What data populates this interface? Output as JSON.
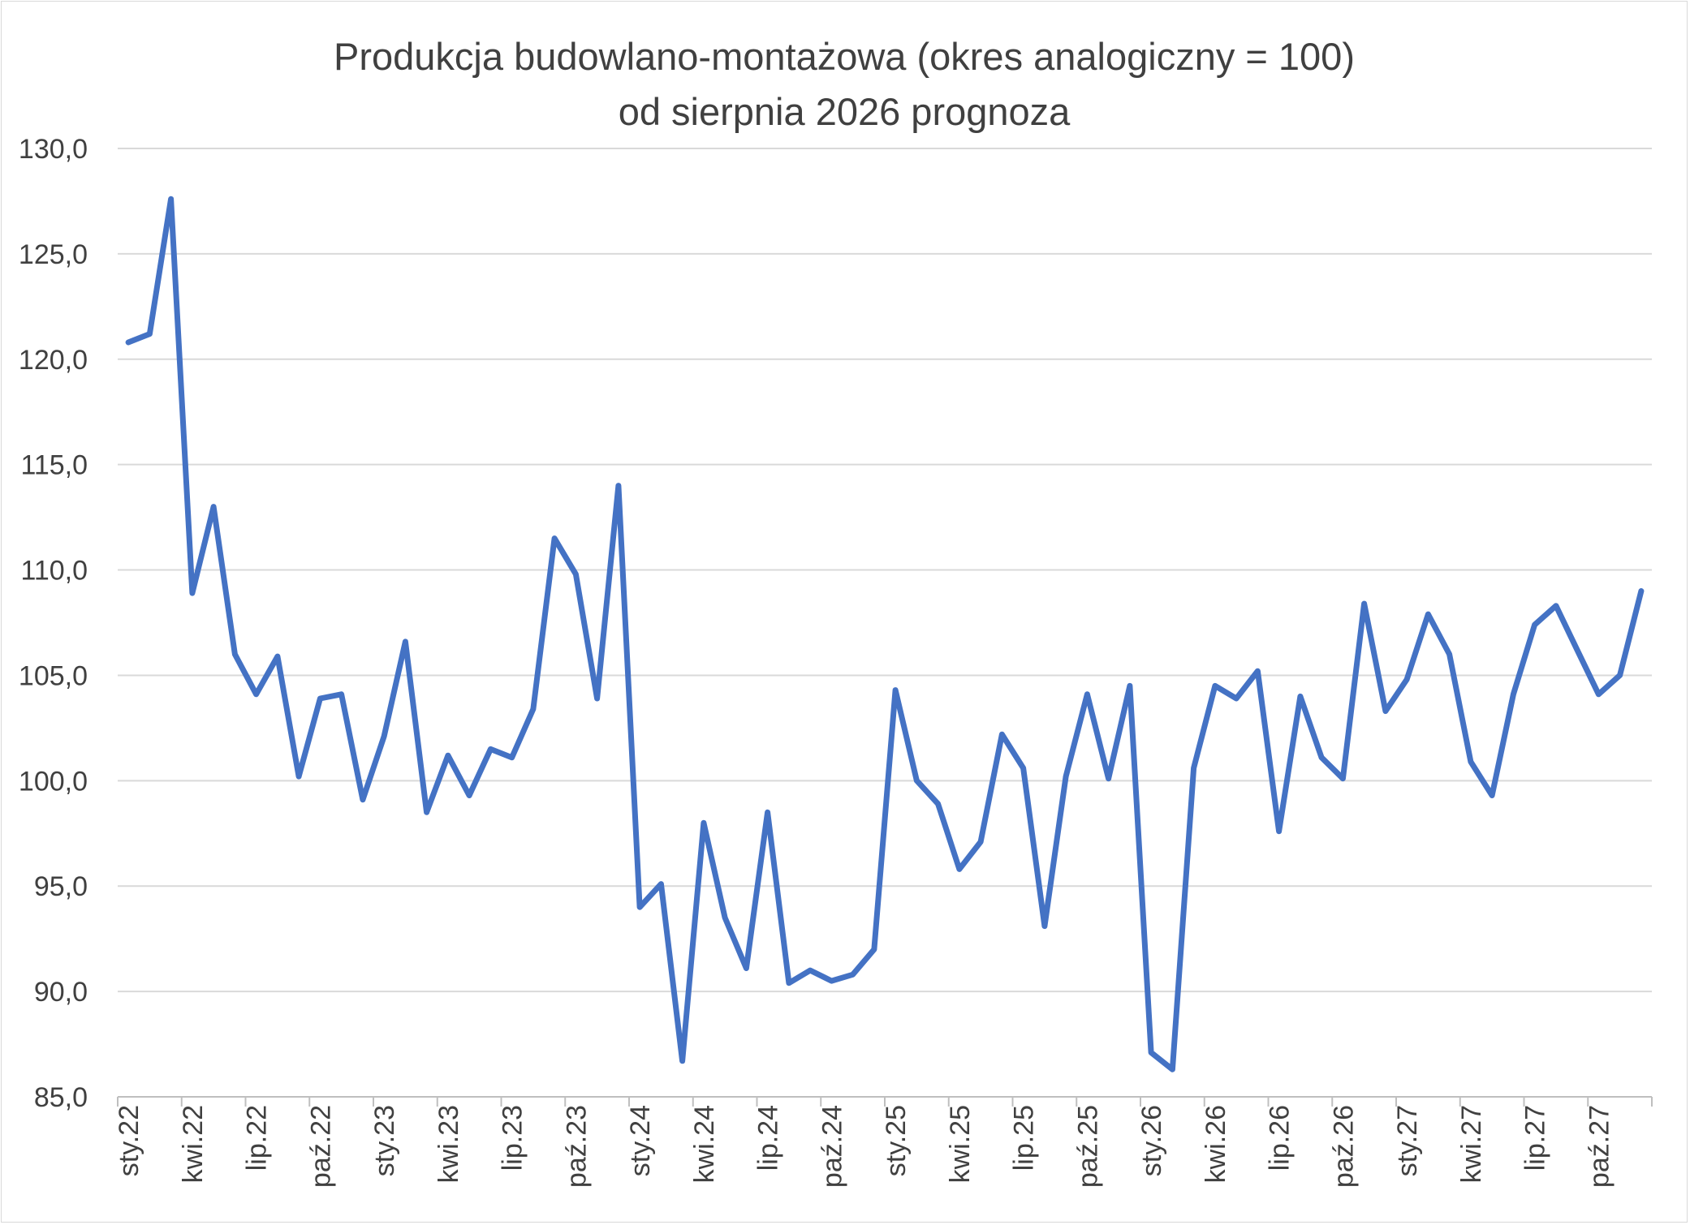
{
  "chart_data": {
    "type": "line",
    "title": "Produkcja budowlano-montażowa (okres analogiczny = 100)",
    "subtitle": "od  sierpnia 2026 prognoza",
    "ylim": [
      85,
      130
    ],
    "y_ticks": [
      "130,0",
      "125,0",
      "120,0",
      "115,0",
      "110,0",
      "105,0",
      "100,0",
      "95,0",
      "90,0",
      "85,0"
    ],
    "y_tick_values": [
      130,
      125,
      120,
      115,
      110,
      105,
      100,
      95,
      90,
      85
    ],
    "x_tick_labels": [
      "sty.22",
      "kwi.22",
      "lip.22",
      "paź.22",
      "sty.23",
      "kwi.23",
      "lip.23",
      "paź.23",
      "sty.24",
      "kwi.24",
      "lip.24",
      "paź.24",
      "sty.25",
      "kwi.25",
      "lip.25",
      "paź.25",
      "sty.26",
      "kwi.26",
      "lip.26",
      "paź.26",
      "sty.27",
      "kwi.27",
      "lip.27",
      "paź.27"
    ],
    "x_tick_interval_months": 3,
    "grid": true,
    "legend": "none",
    "series": [
      {
        "color": "#4472c4",
        "values": [
          120.8,
          121.2,
          127.6,
          108.9,
          113.0,
          106.0,
          104.1,
          105.9,
          100.2,
          103.9,
          104.1,
          99.1,
          102.1,
          106.6,
          98.5,
          101.2,
          99.3,
          101.5,
          101.1,
          103.4,
          111.5,
          109.8,
          103.9,
          114.0,
          94.0,
          95.1,
          86.7,
          98.0,
          93.5,
          91.1,
          98.5,
          90.4,
          91.0,
          90.5,
          90.8,
          92.0,
          104.3,
          100.0,
          98.9,
          95.8,
          97.1,
          102.2,
          100.6,
          93.1,
          100.2,
          104.1,
          100.1,
          104.5,
          87.1,
          86.3,
          100.6,
          104.5,
          103.9,
          105.2,
          97.6,
          104.0,
          101.1,
          100.1,
          108.4,
          103.3,
          104.8,
          107.9,
          106.0,
          100.9,
          99.3,
          104.1,
          107.4,
          108.3,
          106.2,
          104.1,
          105.0,
          109.0
        ]
      }
    ]
  }
}
